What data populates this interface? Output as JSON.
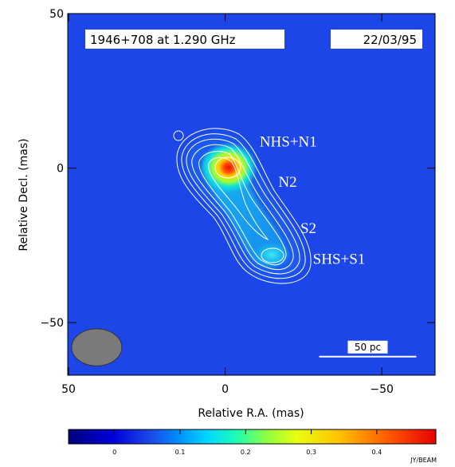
{
  "chart_data": {
    "type": "heatmap",
    "title": "1946+708 at 1.290 GHz",
    "date": "22/03/95",
    "xlabel": "Relative R.A. (mas)",
    "ylabel": "Relative Decl. (mas)",
    "xlim": [
      50,
      -67
    ],
    "ylim": [
      -67,
      50
    ],
    "x_ticks": [
      {
        "value": 50,
        "label": "50"
      },
      {
        "value": 0,
        "label": "0"
      },
      {
        "value": -50,
        "label": "−50"
      }
    ],
    "y_ticks": [
      {
        "value": 50,
        "label": "50"
      },
      {
        "value": 0,
        "label": "0"
      },
      {
        "value": -50,
        "label": "−50"
      }
    ],
    "components": [
      {
        "label": "NHS+N1",
        "x": -11,
        "y": 7
      },
      {
        "label": "N2",
        "x": -17,
        "y": -6
      },
      {
        "label": "S2",
        "x": -24,
        "y": -21
      },
      {
        "label": "SHS+S1",
        "x": -28,
        "y": -31
      }
    ],
    "scale_bar": {
      "label": "50 pc",
      "x_start": -30,
      "x_end": -61,
      "y": -61
    },
    "beam": {
      "x": 41,
      "y": -58,
      "major": 8,
      "minor": 6
    },
    "colorbar": {
      "min": -0.07,
      "max": 0.49,
      "ticks": [
        {
          "value": 0,
          "label": "0"
        },
        {
          "value": 0.1,
          "label": "0.1"
        },
        {
          "value": 0.2,
          "label": "0.2"
        },
        {
          "value": 0.3,
          "label": "0.3"
        },
        {
          "value": 0.4,
          "label": "0.4"
        }
      ],
      "unit": "JY/BEAM"
    },
    "source_peaks": [
      {
        "x": 0,
        "y": 0,
        "flux": 0.44
      },
      {
        "x": -14,
        "y": -28,
        "flux": 0.16
      }
    ],
    "background_color": "#1c46e8"
  }
}
